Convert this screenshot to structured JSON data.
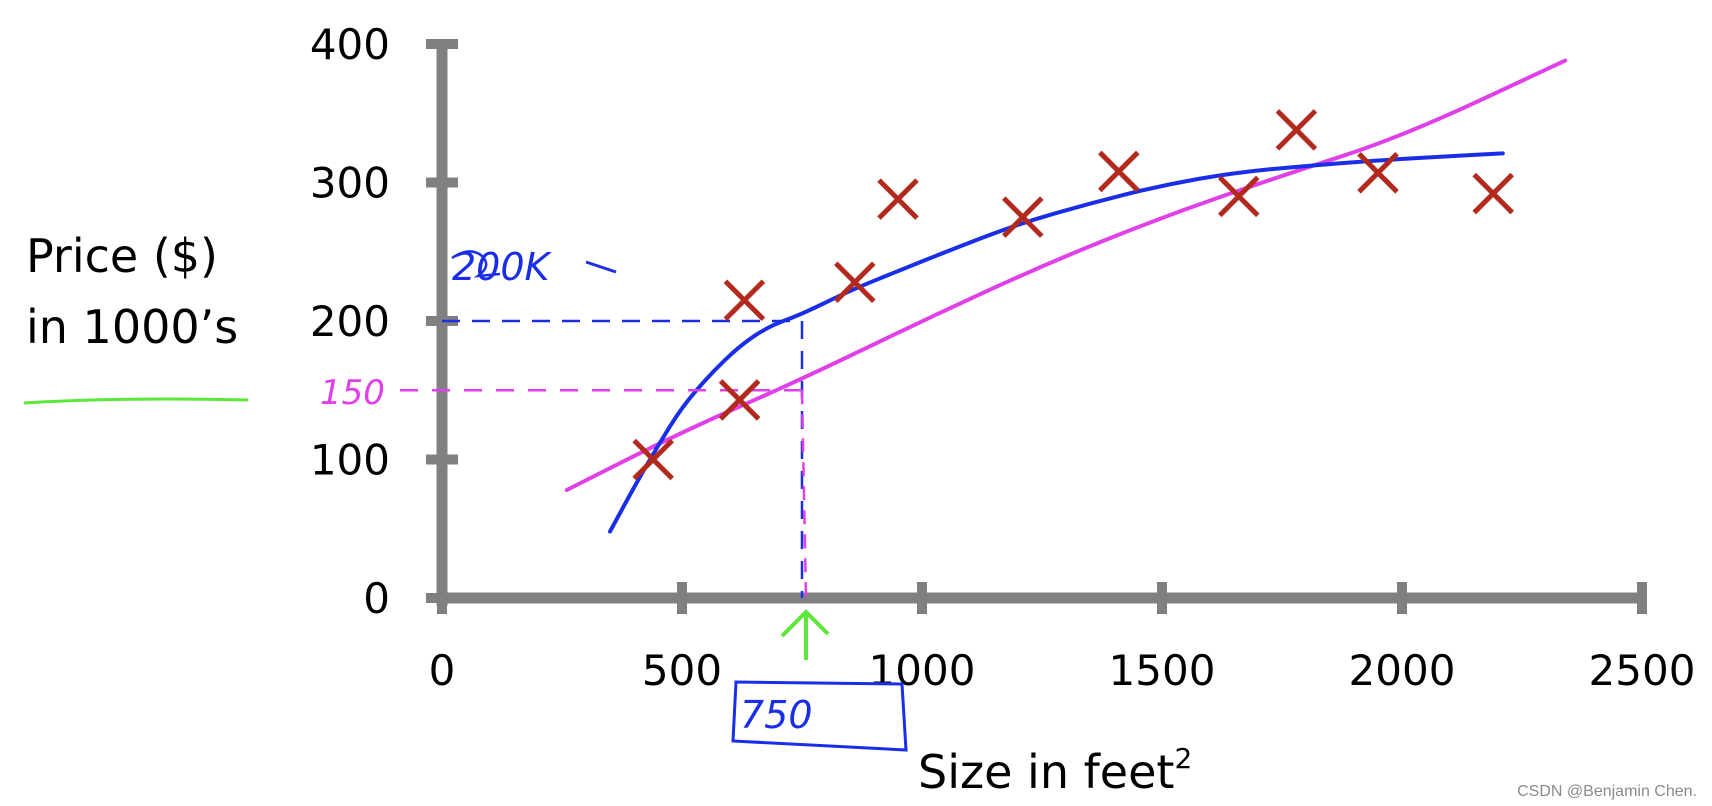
{
  "chart_data": {
    "type": "scatter",
    "title": "",
    "xlabel": "Size in feet",
    "xlabel_superscript": "2",
    "ylabel_lines": [
      "Price ($)",
      "in 1000’s"
    ],
    "xlim": [
      0,
      2500
    ],
    "ylim": [
      0,
      400
    ],
    "x_ticks": [
      0,
      500,
      1000,
      1500,
      2000,
      2500
    ],
    "y_ticks": [
      0,
      100,
      200,
      300,
      400
    ],
    "grid": false,
    "points": [
      {
        "x": 440,
        "y": 100
      },
      {
        "x": 620,
        "y": 143
      },
      {
        "x": 630,
        "y": 215
      },
      {
        "x": 860,
        "y": 228
      },
      {
        "x": 950,
        "y": 288
      },
      {
        "x": 1210,
        "y": 275
      },
      {
        "x": 1410,
        "y": 308
      },
      {
        "x": 1660,
        "y": 290
      },
      {
        "x": 1780,
        "y": 338
      },
      {
        "x": 1950,
        "y": 307
      },
      {
        "x": 2190,
        "y": 292
      }
    ],
    "point_color": "#b22a1e",
    "fits": [
      {
        "kind": "straight-line",
        "color": "#e040e8",
        "x": [
          260,
          500,
          750,
          1000,
          1250,
          1500,
          1750,
          2000,
          2340
        ],
        "y": [
          78,
          120,
          158,
          200,
          240,
          275,
          305,
          333,
          388
        ]
      },
      {
        "kind": "curve",
        "color": "#1a2ee8",
        "x": [
          350,
          400,
          450,
          500,
          560,
          620,
          680,
          750,
          850,
          950,
          1050,
          1200,
          1350,
          1500,
          1650,
          1800,
          1950,
          2100,
          2210
        ],
        "y": [
          48,
          80,
          110,
          138,
          162,
          182,
          196,
          205,
          222,
          236,
          250,
          270,
          285,
          298,
          307,
          312,
          316,
          319,
          321
        ]
      }
    ],
    "annotations": [
      {
        "text": "200K",
        "color": "#1a2ee8",
        "value": 200
      },
      {
        "text": "150",
        "color": "#e040e8",
        "value": 150
      },
      {
        "text": "750",
        "color": "#1a2ee8",
        "value": 750
      }
    ],
    "annotation_colors": {
      "green": "#5be83a",
      "blue": "#1a2ee8",
      "magenta": "#e040e8"
    }
  },
  "watermark": "CSDN @Benjamin Chen."
}
